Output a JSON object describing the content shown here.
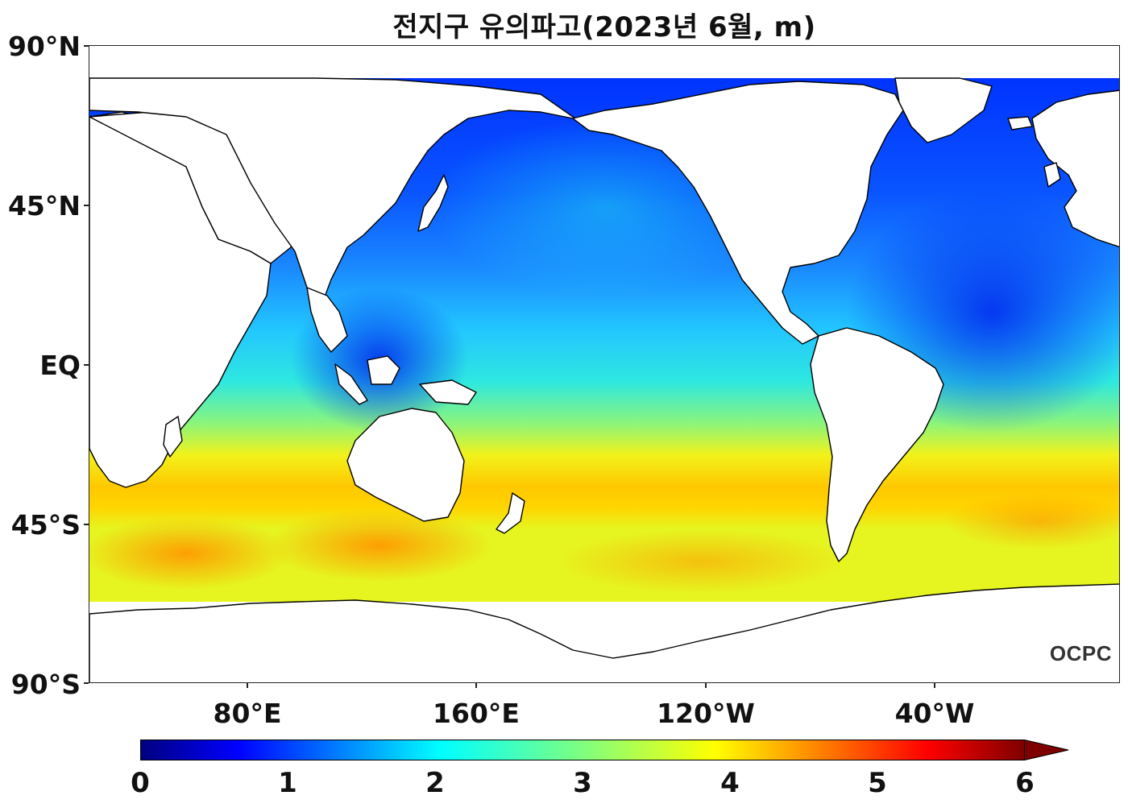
{
  "title": "전지구 유의파고(2023년 6월, m)",
  "watermark": "OCPC",
  "axes": {
    "latitude_ticks": [
      {
        "value": 90,
        "label": "90°N"
      },
      {
        "value": 45,
        "label": "45°N"
      },
      {
        "value": 0,
        "label": "EQ"
      },
      {
        "value": -45,
        "label": "45°S"
      },
      {
        "value": -90,
        "label": "90°S"
      }
    ],
    "longitude_ticks": [
      {
        "value": 80,
        "label": "80°E"
      },
      {
        "value": 160,
        "label": "160°E"
      },
      {
        "value": 240,
        "label": "120°W"
      },
      {
        "value": 320,
        "label": "40°W"
      }
    ],
    "longitude_range": [
      20,
      380
    ],
    "latitude_range": [
      -90,
      90
    ]
  },
  "colorbar": {
    "min": 0,
    "max": 6,
    "extend": "max",
    "ticks": [
      "0",
      "1",
      "2",
      "3",
      "4",
      "5",
      "6"
    ],
    "colormap": "jet",
    "colors": [
      "#00007f",
      "#0000ff",
      "#007fff",
      "#00ffff",
      "#7fff7f",
      "#ffff00",
      "#ff7f00",
      "#ff0000",
      "#7f0000"
    ]
  },
  "colors": {
    "land": "#ffffff",
    "coastline": "#000000"
  }
}
